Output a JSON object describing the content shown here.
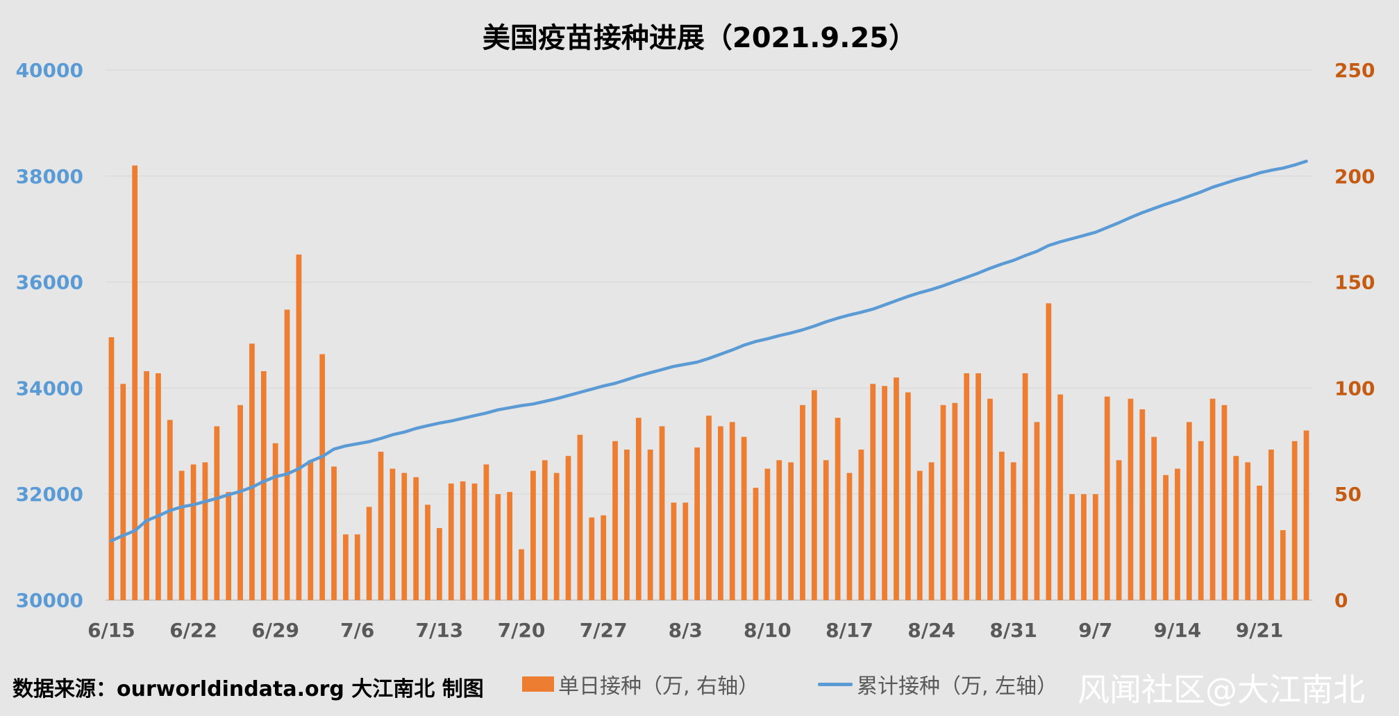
{
  "chart_data": {
    "type": "bar+line",
    "title": "美国疫苗接种进展（2021.9.25）",
    "x_ticks": [
      "6/15",
      "6/22",
      "6/29",
      "7/6",
      "7/13",
      "7/20",
      "7/27",
      "8/3",
      "8/10",
      "8/17",
      "8/24",
      "8/31",
      "9/7",
      "9/14",
      "9/21"
    ],
    "dates": [
      "6/15",
      "6/16",
      "6/17",
      "6/18",
      "6/19",
      "6/20",
      "6/21",
      "6/22",
      "6/23",
      "6/24",
      "6/25",
      "6/26",
      "6/27",
      "6/28",
      "6/29",
      "6/30",
      "7/1",
      "7/2",
      "7/3",
      "7/4",
      "7/5",
      "7/6",
      "7/7",
      "7/8",
      "7/9",
      "7/10",
      "7/11",
      "7/12",
      "7/13",
      "7/14",
      "7/15",
      "7/16",
      "7/17",
      "7/18",
      "7/19",
      "7/20",
      "7/21",
      "7/22",
      "7/23",
      "7/24",
      "7/25",
      "7/26",
      "7/27",
      "7/28",
      "7/29",
      "7/30",
      "7/31",
      "8/1",
      "8/2",
      "8/3",
      "8/4",
      "8/5",
      "8/6",
      "8/7",
      "8/8",
      "8/9",
      "8/10",
      "8/11",
      "8/12",
      "8/13",
      "8/14",
      "8/15",
      "8/16",
      "8/17",
      "8/18",
      "8/19",
      "8/20",
      "8/21",
      "8/22",
      "8/23",
      "8/24",
      "8/25",
      "8/26",
      "8/27",
      "8/28",
      "8/29",
      "8/30",
      "8/31",
      "9/1",
      "9/2",
      "9/3",
      "9/4",
      "9/5",
      "9/6",
      "9/7",
      "9/8",
      "9/9",
      "9/10",
      "9/11",
      "9/12",
      "9/13",
      "9/14",
      "9/15",
      "9/16",
      "9/17",
      "9/18",
      "9/19",
      "9/20",
      "9/21",
      "9/22",
      "9/23",
      "9/24",
      "9/25"
    ],
    "y_left": {
      "ticks": [
        30000,
        32000,
        34000,
        36000,
        38000,
        40000
      ],
      "range": [
        30000,
        40000
      ],
      "color": "#5b9bd5"
    },
    "y_right": {
      "ticks": [
        0,
        50,
        100,
        150,
        200,
        250
      ],
      "range": [
        0,
        250
      ],
      "color": "#c55a11"
    },
    "grid": true,
    "legend_position": "bottom",
    "series": [
      {
        "name": "单日接种（万, 右轴）",
        "type": "bar",
        "axis": "right",
        "color": "#ed7d31",
        "values": [
          124,
          102,
          205,
          108,
          107,
          85,
          61,
          64,
          65,
          82,
          51,
          92,
          121,
          108,
          74,
          137,
          163,
          66,
          116,
          63,
          31,
          31,
          44,
          70,
          62,
          60,
          58,
          45,
          34,
          55,
          56,
          55,
          64,
          50,
          51,
          24,
          61,
          66,
          60,
          68,
          78,
          39,
          40,
          75,
          71,
          86,
          71,
          82,
          46,
          46,
          72,
          87,
          82,
          84,
          77,
          53,
          62,
          66,
          65,
          92,
          99,
          66,
          86,
          60,
          71,
          102,
          101,
          105,
          98,
          61,
          65,
          92,
          93,
          107,
          107,
          95,
          70,
          65,
          107,
          84,
          140,
          97,
          50,
          50,
          50,
          96,
          66,
          95,
          90,
          77,
          59,
          62,
          84,
          75,
          95,
          92,
          68,
          65,
          54,
          71,
          33,
          75,
          80
        ]
      },
      {
        "name": "累计接种（万, 左轴）",
        "type": "line",
        "axis": "left",
        "color": "#5b9bd5",
        "values": [
          31120,
          31220,
          31310,
          31500,
          31590,
          31690,
          31760,
          31800,
          31860,
          31920,
          31990,
          32050,
          32130,
          32240,
          32330,
          32380,
          32480,
          32620,
          32710,
          32850,
          32910,
          32950,
          32990,
          33050,
          33120,
          33170,
          33240,
          33290,
          33340,
          33380,
          33430,
          33480,
          33530,
          33590,
          33630,
          33670,
          33700,
          33750,
          33800,
          33860,
          33920,
          33980,
          34040,
          34090,
          34160,
          34230,
          34290,
          34350,
          34410,
          34450,
          34490,
          34560,
          34640,
          34720,
          34810,
          34880,
          34930,
          34990,
          35040,
          35100,
          35170,
          35250,
          35320,
          35380,
          35430,
          35490,
          35570,
          35650,
          35730,
          35800,
          35860,
          35930,
          36010,
          36090,
          36170,
          36260,
          36340,
          36410,
          36500,
          36580,
          36690,
          36760,
          36820,
          36880,
          36940,
          37030,
          37120,
          37220,
          37310,
          37390,
          37470,
          37540,
          37620,
          37700,
          37790,
          37860,
          37930,
          37990,
          38060,
          38110,
          38150,
          38210,
          38280
        ]
      }
    ]
  },
  "footer": {
    "source": "数据来源：ourworldindata.org 大江南北 制图",
    "watermark": "风闻社区@大江南北"
  }
}
